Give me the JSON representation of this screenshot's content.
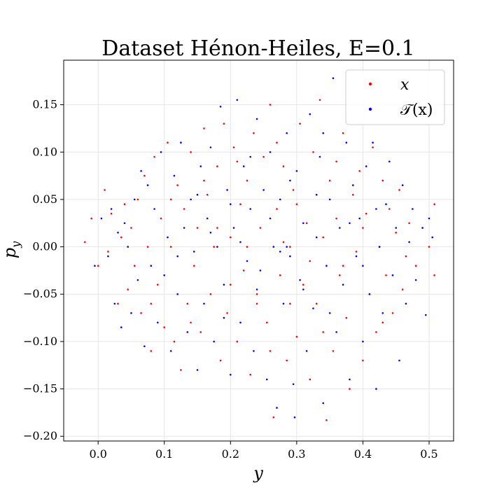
{
  "chart_data": {
    "type": "scatter",
    "title": "Dataset Hénon-Heiles, E=0.1",
    "xlabel": "y",
    "ylabel": "p_y",
    "xlim": [
      -0.052,
      0.537
    ],
    "ylim": [
      -0.205,
      0.197
    ],
    "x_ticks": [
      0.0,
      0.1,
      0.2,
      0.3,
      0.4,
      0.5
    ],
    "x_tick_labels": [
      "0.0",
      "0.1",
      "0.2",
      "0.3",
      "0.4",
      "0.5"
    ],
    "y_ticks": [
      -0.2,
      -0.15,
      -0.1,
      -0.05,
      0.0,
      0.05,
      0.1,
      0.15
    ],
    "y_tick_labels": [
      "−0.20",
      "−0.15",
      "−0.10",
      "−0.05",
      "0.00",
      "0.05",
      "0.10",
      "0.15"
    ],
    "grid": true,
    "legend_position": "top-right",
    "series": [
      {
        "name": "x",
        "color": "#ff0000",
        "points": [
          [
            -0.02,
            0.005
          ],
          [
            -0.01,
            0.03
          ],
          [
            0.0,
            -0.02
          ],
          [
            0.01,
            0.06
          ],
          [
            0.015,
            -0.005
          ],
          [
            0.02,
            0.035
          ],
          [
            0.03,
            -0.06
          ],
          [
            0.035,
            0.01
          ],
          [
            0.04,
            0.045
          ],
          [
            0.045,
            -0.045
          ],
          [
            0.05,
            0.02
          ],
          [
            0.055,
            -0.02
          ],
          [
            0.06,
            0.05
          ],
          [
            0.065,
            -0.07
          ],
          [
            0.07,
            0.075
          ],
          [
            0.075,
            0.0
          ],
          [
            0.08,
            -0.11
          ],
          [
            0.085,
            0.095
          ],
          [
            0.09,
            -0.04
          ],
          [
            0.095,
            0.03
          ],
          [
            0.1,
            -0.085
          ],
          [
            0.105,
            0.11
          ],
          [
            0.11,
            0.0
          ],
          [
            0.115,
            -0.1
          ],
          [
            0.12,
            0.065
          ],
          [
            0.125,
            -0.13
          ],
          [
            0.13,
            0.04
          ],
          [
            0.135,
            -0.06
          ],
          [
            0.14,
            0.1
          ],
          [
            0.145,
            -0.02
          ],
          [
            0.15,
            0.02
          ],
          [
            0.155,
            -0.09
          ],
          [
            0.16,
            0.125
          ],
          [
            0.165,
            0.055
          ],
          [
            0.17,
            -0.05
          ],
          [
            0.175,
            0.0
          ],
          [
            0.18,
            0.085
          ],
          [
            0.185,
            -0.12
          ],
          [
            0.19,
            0.13
          ],
          [
            0.195,
            -0.07
          ],
          [
            0.2,
            0.01
          ],
          [
            0.205,
            0.105
          ],
          [
            0.21,
            -0.1
          ],
          [
            0.215,
            0.045
          ],
          [
            0.22,
            -0.025
          ],
          [
            0.225,
            0.07
          ],
          [
            0.23,
            -0.135
          ],
          [
            0.235,
            0.12
          ],
          [
            0.24,
            -0.05
          ],
          [
            0.245,
            0.02
          ],
          [
            0.25,
            0.095
          ],
          [
            0.255,
            -0.08
          ],
          [
            0.26,
            0.15
          ],
          [
            0.265,
            -0.18
          ],
          [
            0.27,
            0.04
          ],
          [
            0.275,
            -0.03
          ],
          [
            0.28,
            0.085
          ],
          [
            0.285,
            -0.12
          ],
          [
            0.29,
            0.0
          ],
          [
            0.295,
            0.06
          ],
          [
            0.3,
            -0.095
          ],
          [
            0.305,
            0.13
          ],
          [
            0.31,
            -0.04
          ],
          [
            0.315,
            0.025
          ],
          [
            0.32,
            -0.14
          ],
          [
            0.325,
            0.1
          ],
          [
            0.33,
            -0.06
          ],
          [
            0.335,
            0.155
          ],
          [
            0.34,
            0.01
          ],
          [
            0.345,
            -0.183
          ],
          [
            0.35,
            0.07
          ],
          [
            0.355,
            -0.11
          ],
          [
            0.36,
            0.03
          ],
          [
            0.365,
            -0.03
          ],
          [
            0.37,
            0.12
          ],
          [
            0.375,
            -0.075
          ],
          [
            0.38,
            -0.15
          ],
          [
            0.385,
            0.055
          ],
          [
            0.39,
            -0.005
          ],
          [
            0.395,
            0.08
          ],
          [
            0.4,
            -0.12
          ],
          [
            0.405,
            0.035
          ],
          [
            0.41,
            -0.05
          ],
          [
            0.415,
            0.105
          ],
          [
            0.42,
            -0.09
          ],
          [
            0.425,
            0.0
          ],
          [
            0.43,
            0.07
          ],
          [
            0.435,
            -0.03
          ],
          [
            0.44,
            0.04
          ],
          [
            0.445,
            -0.07
          ],
          [
            0.45,
            0.015
          ],
          [
            0.455,
            0.06
          ],
          [
            0.46,
            -0.045
          ],
          [
            0.465,
            -0.01
          ],
          [
            0.47,
            0.025
          ],
          [
            0.48,
            -0.02
          ],
          [
            0.49,
            0.02
          ],
          [
            0.5,
            0.0
          ],
          [
            0.508,
            -0.03
          ],
          [
            0.508,
            0.045
          ],
          [
            0.225,
            0.0
          ],
          [
            0.28,
            0.005
          ],
          [
            0.18,
            0.02
          ],
          [
            0.32,
            -0.015
          ],
          [
            0.24,
            -0.06
          ],
          [
            0.36,
            0.09
          ],
          [
            0.14,
            -0.08
          ],
          [
            0.27,
            0.11
          ],
          [
            0.11,
            0.05
          ],
          [
            0.4,
            0.02
          ],
          [
            0.2,
            -0.04
          ],
          [
            0.3,
            0.045
          ],
          [
            0.26,
            -0.11
          ],
          [
            0.34,
            -0.09
          ],
          [
            0.16,
            0.07
          ],
          [
            0.43,
            -0.08
          ],
          [
            0.08,
            -0.06
          ],
          [
            0.21,
            0.09
          ],
          [
            0.29,
            -0.06
          ],
          [
            0.37,
            -0.02
          ]
        ]
      },
      {
        "name": "𝒯(x)",
        "color": "#0000ff",
        "points": [
          [
            -0.005,
            -0.02
          ],
          [
            0.005,
            0.03
          ],
          [
            0.015,
            -0.01
          ],
          [
            0.02,
            0.04
          ],
          [
            0.025,
            -0.06
          ],
          [
            0.03,
            0.015
          ],
          [
            0.035,
            -0.085
          ],
          [
            0.04,
            0.025
          ],
          [
            0.045,
            0.0
          ],
          [
            0.05,
            -0.07
          ],
          [
            0.055,
            0.05
          ],
          [
            0.06,
            -0.035
          ],
          [
            0.065,
            0.08
          ],
          [
            0.07,
            -0.105
          ],
          [
            0.075,
            0.065
          ],
          [
            0.08,
            -0.02
          ],
          [
            0.085,
            0.04
          ],
          [
            0.09,
            -0.08
          ],
          [
            0.095,
            0.1
          ],
          [
            0.1,
            -0.03
          ],
          [
            0.105,
            0.01
          ],
          [
            0.11,
            -0.11
          ],
          [
            0.115,
            0.075
          ],
          [
            0.12,
            -0.05
          ],
          [
            0.125,
            0.11
          ],
          [
            0.13,
            0.02
          ],
          [
            0.135,
            -0.09
          ],
          [
            0.14,
            0.05
          ],
          [
            0.145,
            -0.005
          ],
          [
            0.15,
            -0.13
          ],
          [
            0.155,
            0.085
          ],
          [
            0.16,
            -0.06
          ],
          [
            0.165,
            0.03
          ],
          [
            0.17,
            0.105
          ],
          [
            0.175,
            -0.1
          ],
          [
            0.18,
            0.0
          ],
          [
            0.185,
            0.148
          ],
          [
            0.19,
            -0.04
          ],
          [
            0.195,
            0.06
          ],
          [
            0.2,
            -0.135
          ],
          [
            0.205,
            0.02
          ],
          [
            0.21,
            0.155
          ],
          [
            0.215,
            -0.08
          ],
          [
            0.22,
            0.085
          ],
          [
            0.225,
            -0.015
          ],
          [
            0.23,
            0.04
          ],
          [
            0.235,
            -0.11
          ],
          [
            0.24,
            0.135
          ],
          [
            0.245,
            -0.025
          ],
          [
            0.25,
            0.06
          ],
          [
            0.255,
            -0.14
          ],
          [
            0.26,
            0.1
          ],
          [
            0.265,
            0.0
          ],
          [
            0.27,
            -0.17
          ],
          [
            0.275,
            0.05
          ],
          [
            0.28,
            -0.06
          ],
          [
            0.285,
            0.12
          ],
          [
            0.29,
            -0.01
          ],
          [
            0.295,
            -0.145
          ],
          [
            0.297,
            -0.18
          ],
          [
            0.3,
            0.08
          ],
          [
            0.305,
            -0.035
          ],
          [
            0.31,
            0.025
          ],
          [
            0.315,
            -0.11
          ],
          [
            0.32,
            0.14
          ],
          [
            0.325,
            -0.065
          ],
          [
            0.33,
            0.01
          ],
          [
            0.335,
            0.095
          ],
          [
            0.34,
            -0.165
          ],
          [
            0.345,
            -0.02
          ],
          [
            0.35,
            0.05
          ],
          [
            0.355,
            0.178
          ],
          [
            0.36,
            -0.09
          ],
          [
            0.365,
            0.02
          ],
          [
            0.37,
            -0.04
          ],
          [
            0.375,
            0.11
          ],
          [
            0.38,
            -0.14
          ],
          [
            0.385,
            0.065
          ],
          [
            0.39,
            -0.01
          ],
          [
            0.395,
            0.03
          ],
          [
            0.4,
            -0.1
          ],
          [
            0.405,
            0.085
          ],
          [
            0.41,
            -0.05
          ],
          [
            0.415,
            0.11
          ],
          [
            0.42,
            -0.15
          ],
          [
            0.425,
            0.0
          ],
          [
            0.43,
            -0.07
          ],
          [
            0.435,
            0.045
          ],
          [
            0.44,
            0.09
          ],
          [
            0.445,
            -0.03
          ],
          [
            0.45,
            0.02
          ],
          [
            0.455,
            -0.12
          ],
          [
            0.46,
            0.065
          ],
          [
            0.465,
            -0.06
          ],
          [
            0.47,
            0.005
          ],
          [
            0.475,
            0.04
          ],
          [
            0.48,
            -0.035
          ],
          [
            0.49,
            0.02
          ],
          [
            0.495,
            -0.072
          ],
          [
            0.5,
            0.03
          ],
          [
            0.505,
            0.01
          ],
          [
            0.275,
            -0.005
          ],
          [
            0.285,
            0.0
          ],
          [
            0.215,
            0.005
          ],
          [
            0.2,
            0.045
          ],
          [
            0.31,
            -0.045
          ],
          [
            0.33,
            0.055
          ],
          [
            0.24,
            -0.045
          ],
          [
            0.17,
            0.015
          ],
          [
            0.38,
            0.025
          ],
          [
            0.26,
            0.03
          ],
          [
            0.12,
            -0.01
          ],
          [
            0.35,
            -0.07
          ],
          [
            0.19,
            -0.075
          ],
          [
            0.42,
            0.04
          ],
          [
            0.29,
            0.07
          ],
          [
            0.23,
            0.095
          ],
          [
            0.15,
            0.055
          ],
          [
            0.34,
            0.12
          ],
          [
            0.4,
            -0.02
          ]
        ]
      }
    ]
  }
}
